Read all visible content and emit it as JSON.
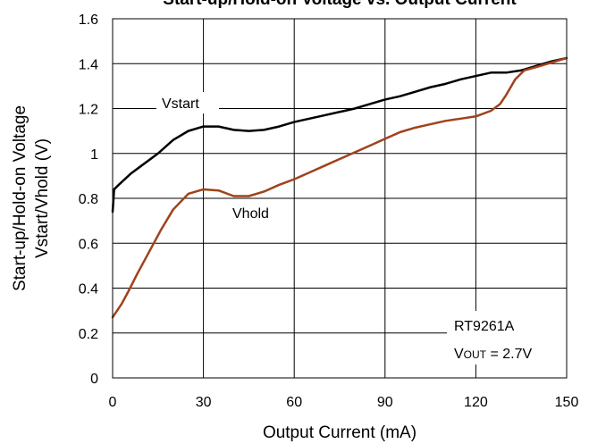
{
  "chart_data": {
    "type": "line",
    "title": "Start-up/Hold-on Voltage vs. Output Current",
    "xlabel": "Output Current (mA)",
    "ylabel_lines": [
      "Start-up/Hold-on Voltage",
      "Vstart/Vhold (V)"
    ],
    "xlim": [
      0,
      150
    ],
    "ylim": [
      0,
      1.6
    ],
    "xticks": [
      0,
      30,
      60,
      90,
      120,
      150
    ],
    "yticks": [
      0,
      0.2,
      0.4,
      0.6,
      0.8,
      1,
      1.2,
      1.4,
      1.6
    ],
    "xtick_labels": [
      "0",
      "30",
      "60",
      "90",
      "120",
      "150"
    ],
    "ytick_labels": [
      "0",
      "0.2",
      "0.4",
      "0.6",
      "0.8",
      "1",
      "1.2",
      "1.4",
      "1.6"
    ],
    "grid": true,
    "series": [
      {
        "name": "Vstart",
        "color": "#000000",
        "x": [
          0,
          0.5,
          2,
          6,
          10,
          15,
          20,
          25,
          30,
          35,
          40,
          45,
          50,
          55,
          60,
          65,
          70,
          75,
          80,
          85,
          90,
          95,
          100,
          105,
          110,
          115,
          120,
          125,
          130,
          135,
          140,
          145,
          150
        ],
        "y": [
          0.74,
          0.84,
          0.86,
          0.91,
          0.95,
          1.0,
          1.06,
          1.1,
          1.12,
          1.12,
          1.105,
          1.1,
          1.105,
          1.12,
          1.14,
          1.155,
          1.17,
          1.185,
          1.2,
          1.22,
          1.24,
          1.255,
          1.275,
          1.295,
          1.31,
          1.33,
          1.345,
          1.36,
          1.36,
          1.37,
          1.39,
          1.41,
          1.425
        ]
      },
      {
        "name": "Vhold",
        "color": "#a0421b",
        "x": [
          0,
          3,
          5,
          8,
          12,
          16,
          20,
          25,
          30,
          35,
          40,
          45,
          50,
          55,
          60,
          65,
          70,
          75,
          80,
          85,
          90,
          95,
          100,
          105,
          110,
          115,
          120,
          125,
          128,
          130,
          133,
          136,
          140,
          145,
          150
        ],
        "y": [
          0.27,
          0.33,
          0.38,
          0.46,
          0.56,
          0.66,
          0.75,
          0.82,
          0.84,
          0.835,
          0.81,
          0.81,
          0.83,
          0.86,
          0.885,
          0.915,
          0.945,
          0.975,
          1.005,
          1.035,
          1.065,
          1.095,
          1.115,
          1.13,
          1.145,
          1.155,
          1.165,
          1.19,
          1.22,
          1.26,
          1.33,
          1.37,
          1.385,
          1.405,
          1.425
        ]
      }
    ],
    "annotations": {
      "vstart_label": "Vstart",
      "vhold_label": "Vhold",
      "part_number": "RT9261A",
      "vout_prefix": "V",
      "vout_subscript": "OUT",
      "vout_value": " = 2.7V"
    }
  }
}
